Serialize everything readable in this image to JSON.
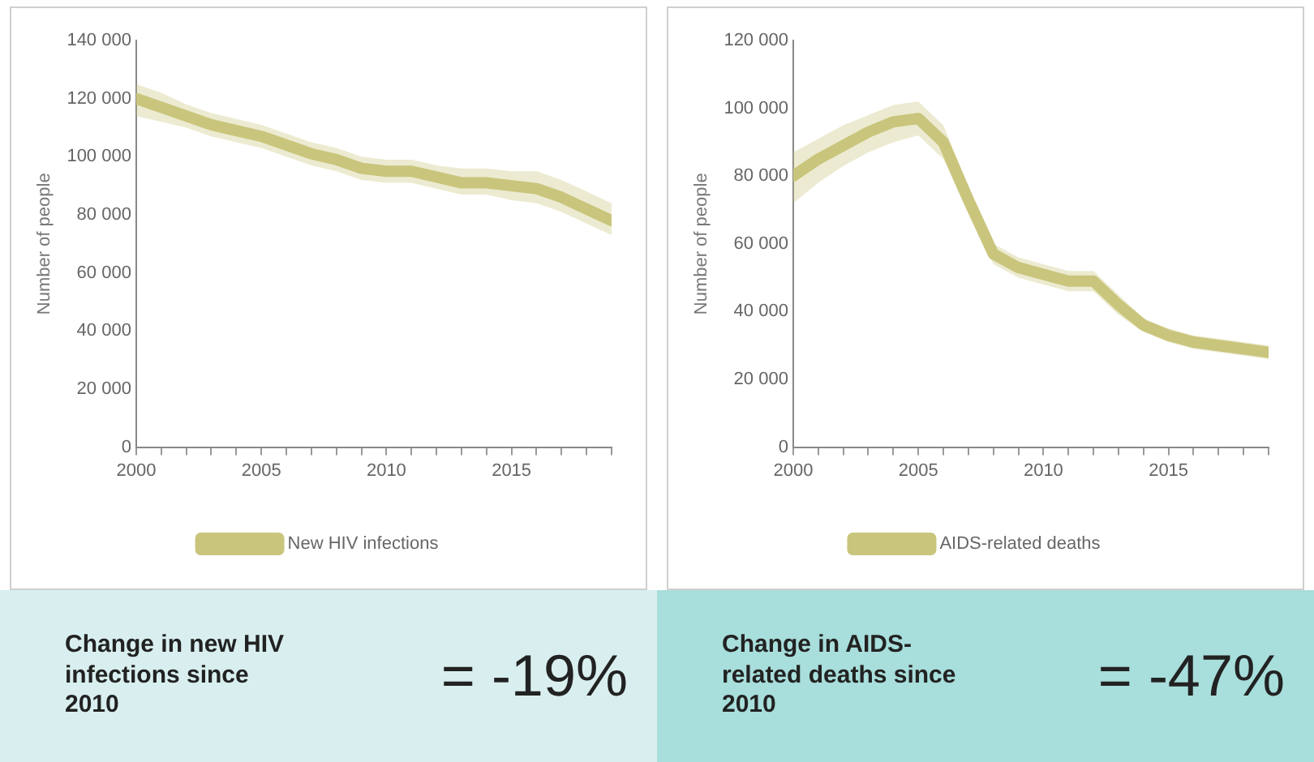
{
  "chart_data": [
    {
      "type": "line",
      "ylabel": "Number of people",
      "x": [
        2000,
        2001,
        2002,
        2003,
        2004,
        2005,
        2006,
        2007,
        2008,
        2009,
        2010,
        2011,
        2012,
        2013,
        2014,
        2015,
        2016,
        2017,
        2018,
        2019
      ],
      "series": [
        {
          "name": "New HIV infections",
          "color": "#c9c57c",
          "values": [
            120000,
            117000,
            114000,
            111000,
            109000,
            107000,
            104000,
            101000,
            99000,
            96000,
            95000,
            95000,
            93000,
            91000,
            91000,
            90000,
            89000,
            86000,
            82000,
            78000
          ],
          "lower": [
            114000,
            112000,
            110000,
            107000,
            105000,
            103000,
            100000,
            97000,
            95000,
            92000,
            91000,
            91000,
            89000,
            87000,
            87000,
            85000,
            84000,
            81000,
            77000,
            73000
          ],
          "upper": [
            125000,
            122000,
            118000,
            115000,
            113000,
            111000,
            108000,
            105000,
            103000,
            100000,
            99000,
            99000,
            97000,
            96000,
            96000,
            95000,
            95000,
            92000,
            88000,
            84000
          ]
        }
      ],
      "xlim": [
        2000,
        2019
      ],
      "xticks": [
        2000,
        {
          "value": 2001,
          "label": null
        },
        {
          "value": 2002,
          "label": null
        },
        {
          "value": 2003,
          "label": null
        },
        {
          "value": 2004,
          "label": null
        },
        2005,
        {
          "value": 2006,
          "label": null
        },
        {
          "value": 2007,
          "label": null
        },
        {
          "value": 2008,
          "label": null
        },
        {
          "value": 2009,
          "label": null
        },
        2010,
        {
          "value": 2011,
          "label": null
        },
        {
          "value": 2012,
          "label": null
        },
        {
          "value": 2013,
          "label": null
        },
        {
          "value": 2014,
          "label": null
        },
        2015,
        {
          "value": 2016,
          "label": null
        },
        {
          "value": 2017,
          "label": null
        },
        {
          "value": 2018,
          "label": null
        },
        {
          "value": 2019,
          "label": null
        }
      ],
      "ylim": [
        0,
        140000
      ],
      "yticks": [
        0,
        {
          "value": 20000,
          "label": "20 000"
        },
        {
          "value": 40000,
          "label": "40 000"
        },
        {
          "value": 60000,
          "label": "60 000"
        },
        {
          "value": 80000,
          "label": "80 000"
        },
        {
          "value": 100000,
          "label": "100 000"
        },
        {
          "value": 120000,
          "label": "120 000"
        },
        {
          "value": 140000,
          "label": "140 000"
        }
      ],
      "grid": false,
      "legend": "bottom",
      "marker": "none",
      "line_style": "solid",
      "annotations": [
        "Change in new HIV infections since 2010",
        "= -19%"
      ]
    },
    {
      "type": "line",
      "ylabel": "Number of people",
      "x": [
        2000,
        2001,
        2002,
        2003,
        2004,
        2005,
        2006,
        2007,
        2008,
        2009,
        2010,
        2011,
        2012,
        2013,
        2014,
        2015,
        2016,
        2017,
        2018,
        2019
      ],
      "series": [
        {
          "name": "AIDS-related deaths",
          "color": "#c9c57c",
          "values": [
            80000,
            85000,
            89000,
            93000,
            96000,
            97000,
            90000,
            73000,
            57000,
            53000,
            51000,
            49000,
            49000,
            42000,
            36000,
            33000,
            31000,
            30000,
            29000,
            28000
          ],
          "lower": [
            72000,
            78000,
            83000,
            87000,
            90000,
            92000,
            85000,
            69000,
            54000,
            50000,
            48000,
            46000,
            46000,
            39000,
            34000,
            31000,
            29000,
            28000,
            27000,
            26000
          ],
          "upper": [
            87000,
            91000,
            95000,
            98000,
            101000,
            102000,
            95000,
            77000,
            60000,
            56000,
            54000,
            52000,
            52000,
            45000,
            38000,
            35000,
            33000,
            32000,
            31000,
            30000
          ]
        }
      ],
      "xlim": [
        2000,
        2019
      ],
      "xticks": [
        2000,
        {
          "value": 2001,
          "label": null
        },
        {
          "value": 2002,
          "label": null
        },
        {
          "value": 2003,
          "label": null
        },
        {
          "value": 2004,
          "label": null
        },
        2005,
        {
          "value": 2006,
          "label": null
        },
        {
          "value": 2007,
          "label": null
        },
        {
          "value": 2008,
          "label": null
        },
        {
          "value": 2009,
          "label": null
        },
        2010,
        {
          "value": 2011,
          "label": null
        },
        {
          "value": 2012,
          "label": null
        },
        {
          "value": 2013,
          "label": null
        },
        {
          "value": 2014,
          "label": null
        },
        2015,
        {
          "value": 2016,
          "label": null
        },
        {
          "value": 2017,
          "label": null
        },
        {
          "value": 2018,
          "label": null
        },
        {
          "value": 2019,
          "label": null
        }
      ],
      "ylim": [
        0,
        120000
      ],
      "yticks": [
        0,
        {
          "value": 20000,
          "label": "20 000"
        },
        {
          "value": 40000,
          "label": "40 000"
        },
        {
          "value": 60000,
          "label": "60 000"
        },
        {
          "value": 80000,
          "label": "80 000"
        },
        {
          "value": 100000,
          "label": "100 000"
        },
        {
          "value": 120000,
          "label": "120 000"
        }
      ],
      "grid": false,
      "legend": "bottom",
      "marker": "none",
      "line_style": "solid",
      "annotations": [
        "Change in AIDS-related deaths since 2010",
        "= -47%"
      ]
    }
  ]
}
